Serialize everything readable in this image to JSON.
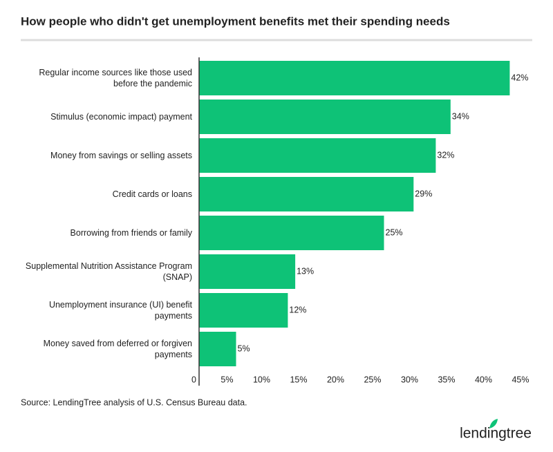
{
  "chart_data": {
    "type": "bar",
    "orientation": "horizontal",
    "title": "How people who didn't get unemployment benefits met their spending needs",
    "categories": [
      "Regular income sources like those used before the pandemic",
      "Stimulus (economic impact) payment",
      "Money from savings or selling assets",
      "Credit cards or loans",
      "Borrowing from friends or family",
      "Supplemental Nutrition Assistance Program (SNAP)",
      "Unemployment insurance (UI) benefit payments",
      "Money saved from deferred or forgiven payments"
    ],
    "values": [
      42,
      34,
      32,
      29,
      25,
      13,
      12,
      5
    ],
    "value_labels": [
      "42%",
      "34%",
      "32%",
      "29%",
      "25%",
      "13%",
      "12%",
      "5%"
    ],
    "color": "#0ec277",
    "xlim": [
      0,
      45
    ],
    "xticks": [
      0,
      {
        "value": 5,
        "label": "5%"
      },
      {
        "value": 10,
        "label": "10%"
      },
      {
        "value": 15,
        "label": "15%"
      },
      {
        "value": 20,
        "label": "20%"
      },
      {
        "value": 25,
        "label": "25%"
      },
      {
        "value": 30,
        "label": "30%"
      },
      {
        "value": 35,
        "label": "35%"
      },
      {
        "value": 40,
        "label": "40%"
      },
      {
        "value": 45,
        "label": "45%"
      }
    ],
    "grid": false,
    "source": "Source: LendingTree analysis of U.S. Census Bureau data.",
    "logo": "lendingtree"
  }
}
